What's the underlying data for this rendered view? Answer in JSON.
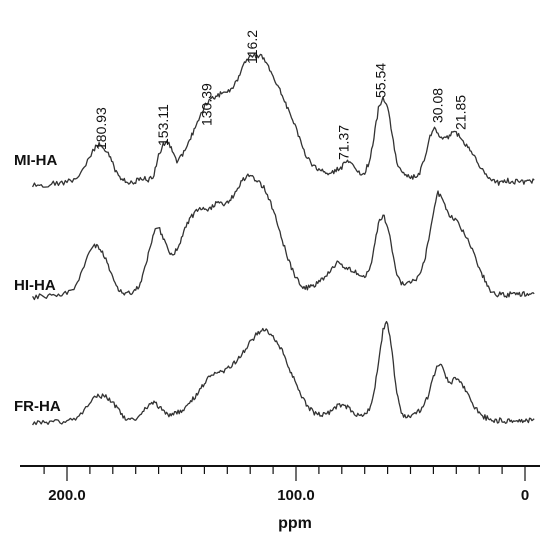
{
  "chart_data": {
    "type": "line",
    "xlabel": "ppm",
    "x_reversed": true,
    "xlim": [
      220,
      -5
    ],
    "ticks": [
      {
        "value": 200,
        "label": "200.0"
      },
      {
        "value": 100,
        "label": "100.0"
      },
      {
        "value": 0,
        "label": "0"
      }
    ],
    "grid": false,
    "peak_labels": [
      {
        "text": "180.93",
        "ppm": 183
      },
      {
        "text": "153.11",
        "ppm": 156
      },
      {
        "text": "130.39",
        "ppm": 137
      },
      {
        "text": "116.2",
        "ppm": 117
      },
      {
        "text": "71.37",
        "ppm": 77
      },
      {
        "text": "55.54",
        "ppm": 61
      },
      {
        "text": "30.08",
        "ppm": 36
      },
      {
        "text": "21.85",
        "ppm": 26
      }
    ],
    "series": [
      {
        "name": "MI-HA",
        "points": [
          [
            215,
            0.02
          ],
          [
            212,
            0.03
          ],
          [
            209,
            0.02
          ],
          [
            206,
            0.04
          ],
          [
            203,
            0.03
          ],
          [
            200,
            0.05
          ],
          [
            197,
            0.06
          ],
          [
            194,
            0.1
          ],
          [
            191,
            0.2
          ],
          [
            188,
            0.3
          ],
          [
            186,
            0.33
          ],
          [
            184,
            0.3
          ],
          [
            182,
            0.26
          ],
          [
            180,
            0.18
          ],
          [
            178,
            0.1
          ],
          [
            176,
            0.07
          ],
          [
            174,
            0.05
          ],
          [
            172,
            0.04
          ],
          [
            170,
            0.05
          ],
          [
            168,
            0.07
          ],
          [
            166,
            0.08
          ],
          [
            164,
            0.06
          ],
          [
            162,
            0.1
          ],
          [
            160,
            0.25
          ],
          [
            158,
            0.33
          ],
          [
            156,
            0.35
          ],
          [
            154,
            0.28
          ],
          [
            152,
            0.2
          ],
          [
            150,
            0.24
          ],
          [
            148,
            0.3
          ],
          [
            146,
            0.38
          ],
          [
            144,
            0.45
          ],
          [
            142,
            0.55
          ],
          [
            140,
            0.62
          ],
          [
            138,
            0.66
          ],
          [
            136,
            0.68
          ],
          [
            134,
            0.7
          ],
          [
            132,
            0.72
          ],
          [
            130,
            0.72
          ],
          [
            128,
            0.75
          ],
          [
            126,
            0.8
          ],
          [
            124,
            0.88
          ],
          [
            122,
            0.96
          ],
          [
            120,
            1.0
          ],
          [
            118,
            1.0
          ],
          [
            116,
            1.0
          ],
          [
            114,
            0.98
          ],
          [
            112,
            0.92
          ],
          [
            110,
            0.85
          ],
          [
            108,
            0.78
          ],
          [
            106,
            0.7
          ],
          [
            104,
            0.62
          ],
          [
            102,
            0.55
          ],
          [
            100,
            0.45
          ],
          [
            98,
            0.35
          ],
          [
            96,
            0.26
          ],
          [
            94,
            0.2
          ],
          [
            92,
            0.16
          ],
          [
            90,
            0.14
          ],
          [
            88,
            0.12
          ],
          [
            86,
            0.11
          ],
          [
            84,
            0.12
          ],
          [
            82,
            0.14
          ],
          [
            80,
            0.16
          ],
          [
            78,
            0.2
          ],
          [
            76,
            0.18
          ],
          [
            74,
            0.15
          ],
          [
            72,
            0.1
          ],
          [
            70,
            0.12
          ],
          [
            68,
            0.2
          ],
          [
            66,
            0.38
          ],
          [
            64,
            0.6
          ],
          [
            62,
            0.68
          ],
          [
            60,
            0.62
          ],
          [
            58,
            0.4
          ],
          [
            56,
            0.2
          ],
          [
            54,
            0.12
          ],
          [
            52,
            0.09
          ],
          [
            50,
            0.08
          ],
          [
            48,
            0.09
          ],
          [
            46,
            0.12
          ],
          [
            44,
            0.2
          ],
          [
            42,
            0.36
          ],
          [
            40,
            0.46
          ],
          [
            38,
            0.42
          ],
          [
            36,
            0.36
          ],
          [
            34,
            0.38
          ],
          [
            32,
            0.42
          ],
          [
            30,
            0.42
          ],
          [
            28,
            0.38
          ],
          [
            26,
            0.33
          ],
          [
            24,
            0.3
          ],
          [
            22,
            0.25
          ],
          [
            20,
            0.18
          ],
          [
            18,
            0.12
          ],
          [
            16,
            0.08
          ],
          [
            14,
            0.05
          ],
          [
            12,
            0.04
          ],
          [
            10,
            0.04
          ],
          [
            8,
            0.06
          ],
          [
            6,
            0.04
          ],
          [
            4,
            0.05
          ],
          [
            2,
            0.06
          ],
          [
            0,
            0.04
          ],
          [
            -2,
            0.05
          ],
          [
            -4,
            0.06
          ]
        ]
      },
      {
        "name": "HI-HA",
        "points": [
          [
            215,
            0.02
          ],
          [
            212,
            0.03
          ],
          [
            209,
            0.03
          ],
          [
            206,
            0.05
          ],
          [
            203,
            0.04
          ],
          [
            200,
            0.06
          ],
          [
            197,
            0.08
          ],
          [
            194,
            0.2
          ],
          [
            191,
            0.36
          ],
          [
            188,
            0.44
          ],
          [
            186,
            0.42
          ],
          [
            184,
            0.36
          ],
          [
            182,
            0.28
          ],
          [
            180,
            0.18
          ],
          [
            178,
            0.1
          ],
          [
            176,
            0.06
          ],
          [
            174,
            0.05
          ],
          [
            172,
            0.06
          ],
          [
            170,
            0.08
          ],
          [
            168,
            0.12
          ],
          [
            166,
            0.25
          ],
          [
            164,
            0.4
          ],
          [
            162,
            0.55
          ],
          [
            160,
            0.58
          ],
          [
            158,
            0.5
          ],
          [
            156,
            0.4
          ],
          [
            154,
            0.36
          ],
          [
            152,
            0.4
          ],
          [
            150,
            0.5
          ],
          [
            148,
            0.6
          ],
          [
            146,
            0.66
          ],
          [
            144,
            0.7
          ],
          [
            142,
            0.72
          ],
          [
            140,
            0.74
          ],
          [
            138,
            0.72
          ],
          [
            136,
            0.76
          ],
          [
            134,
            0.8
          ],
          [
            132,
            0.76
          ],
          [
            130,
            0.78
          ],
          [
            128,
            0.82
          ],
          [
            126,
            0.88
          ],
          [
            124,
            0.94
          ],
          [
            122,
            0.98
          ],
          [
            120,
            1.0
          ],
          [
            118,
            0.96
          ],
          [
            116,
            0.94
          ],
          [
            114,
            0.9
          ],
          [
            112,
            0.82
          ],
          [
            110,
            0.72
          ],
          [
            108,
            0.6
          ],
          [
            106,
            0.48
          ],
          [
            104,
            0.36
          ],
          [
            102,
            0.26
          ],
          [
            100,
            0.18
          ],
          [
            98,
            0.12
          ],
          [
            96,
            0.1
          ],
          [
            94,
            0.1
          ],
          [
            92,
            0.12
          ],
          [
            90,
            0.14
          ],
          [
            88,
            0.18
          ],
          [
            86,
            0.22
          ],
          [
            84,
            0.26
          ],
          [
            82,
            0.3
          ],
          [
            80,
            0.28
          ],
          [
            78,
            0.26
          ],
          [
            76,
            0.24
          ],
          [
            74,
            0.22
          ],
          [
            72,
            0.2
          ],
          [
            70,
            0.18
          ],
          [
            68,
            0.24
          ],
          [
            66,
            0.4
          ],
          [
            64,
            0.62
          ],
          [
            62,
            0.68
          ],
          [
            60,
            0.6
          ],
          [
            58,
            0.4
          ],
          [
            56,
            0.2
          ],
          [
            54,
            0.14
          ],
          [
            52,
            0.12
          ],
          [
            50,
            0.14
          ],
          [
            48,
            0.16
          ],
          [
            46,
            0.2
          ],
          [
            44,
            0.3
          ],
          [
            42,
            0.5
          ],
          [
            40,
            0.7
          ],
          [
            38,
            0.86
          ],
          [
            36,
            0.8
          ],
          [
            34,
            0.7
          ],
          [
            32,
            0.66
          ],
          [
            30,
            0.64
          ],
          [
            28,
            0.58
          ],
          [
            26,
            0.52
          ],
          [
            24,
            0.44
          ],
          [
            22,
            0.36
          ],
          [
            20,
            0.26
          ],
          [
            18,
            0.18
          ],
          [
            16,
            0.1
          ],
          [
            14,
            0.06
          ],
          [
            12,
            0.04
          ],
          [
            10,
            0.05
          ],
          [
            8,
            0.04
          ],
          [
            6,
            0.05
          ],
          [
            4,
            0.06
          ],
          [
            2,
            0.04
          ],
          [
            0,
            0.05
          ],
          [
            -2,
            0.04
          ],
          [
            -4,
            0.05
          ]
        ]
      },
      {
        "name": "FR-HA",
        "points": [
          [
            215,
            0.02
          ],
          [
            212,
            0.03
          ],
          [
            209,
            0.02
          ],
          [
            206,
            0.04
          ],
          [
            203,
            0.03
          ],
          [
            200,
            0.04
          ],
          [
            197,
            0.06
          ],
          [
            194,
            0.1
          ],
          [
            191,
            0.2
          ],
          [
            188,
            0.26
          ],
          [
            186,
            0.28
          ],
          [
            184,
            0.28
          ],
          [
            182,
            0.26
          ],
          [
            180,
            0.22
          ],
          [
            178,
            0.16
          ],
          [
            176,
            0.1
          ],
          [
            174,
            0.06
          ],
          [
            172,
            0.05
          ],
          [
            170,
            0.06
          ],
          [
            168,
            0.1
          ],
          [
            166,
            0.16
          ],
          [
            164,
            0.2
          ],
          [
            162,
            0.22
          ],
          [
            160,
            0.18
          ],
          [
            158,
            0.14
          ],
          [
            156,
            0.1
          ],
          [
            154,
            0.1
          ],
          [
            152,
            0.12
          ],
          [
            150,
            0.14
          ],
          [
            148,
            0.18
          ],
          [
            146,
            0.22
          ],
          [
            144,
            0.28
          ],
          [
            142,
            0.34
          ],
          [
            140,
            0.4
          ],
          [
            138,
            0.46
          ],
          [
            136,
            0.5
          ],
          [
            134,
            0.52
          ],
          [
            132,
            0.52
          ],
          [
            130,
            0.54
          ],
          [
            128,
            0.58
          ],
          [
            126,
            0.62
          ],
          [
            124,
            0.68
          ],
          [
            122,
            0.74
          ],
          [
            120,
            0.8
          ],
          [
            118,
            0.86
          ],
          [
            116,
            0.9
          ],
          [
            114,
            0.92
          ],
          [
            112,
            0.9
          ],
          [
            110,
            0.86
          ],
          [
            108,
            0.8
          ],
          [
            106,
            0.72
          ],
          [
            104,
            0.62
          ],
          [
            102,
            0.5
          ],
          [
            100,
            0.4
          ],
          [
            98,
            0.3
          ],
          [
            96,
            0.22
          ],
          [
            94,
            0.16
          ],
          [
            92,
            0.12
          ],
          [
            90,
            0.1
          ],
          [
            88,
            0.1
          ],
          [
            86,
            0.12
          ],
          [
            84,
            0.14
          ],
          [
            82,
            0.18
          ],
          [
            80,
            0.2
          ],
          [
            78,
            0.18
          ],
          [
            76,
            0.14
          ],
          [
            74,
            0.1
          ],
          [
            72,
            0.08
          ],
          [
            70,
            0.1
          ],
          [
            68,
            0.16
          ],
          [
            66,
            0.3
          ],
          [
            64,
            0.6
          ],
          [
            62,
            0.92
          ],
          [
            60,
            1.0
          ],
          [
            58,
            0.7
          ],
          [
            56,
            0.3
          ],
          [
            54,
            0.12
          ],
          [
            52,
            0.08
          ],
          [
            50,
            0.08
          ],
          [
            48,
            0.1
          ],
          [
            46,
            0.14
          ],
          [
            44,
            0.2
          ],
          [
            42,
            0.3
          ],
          [
            40,
            0.46
          ],
          [
            38,
            0.58
          ],
          [
            36,
            0.56
          ],
          [
            34,
            0.44
          ],
          [
            32,
            0.42
          ],
          [
            30,
            0.46
          ],
          [
            28,
            0.42
          ],
          [
            26,
            0.34
          ],
          [
            24,
            0.26
          ],
          [
            22,
            0.18
          ],
          [
            20,
            0.12
          ],
          [
            18,
            0.08
          ],
          [
            16,
            0.06
          ],
          [
            14,
            0.05
          ],
          [
            12,
            0.04
          ],
          [
            10,
            0.05
          ],
          [
            8,
            0.03
          ],
          [
            6,
            0.04
          ],
          [
            4,
            0.05
          ],
          [
            2,
            0.03
          ],
          [
            0,
            0.04
          ],
          [
            -2,
            0.05
          ],
          [
            -4,
            0.06
          ]
        ]
      }
    ]
  }
}
